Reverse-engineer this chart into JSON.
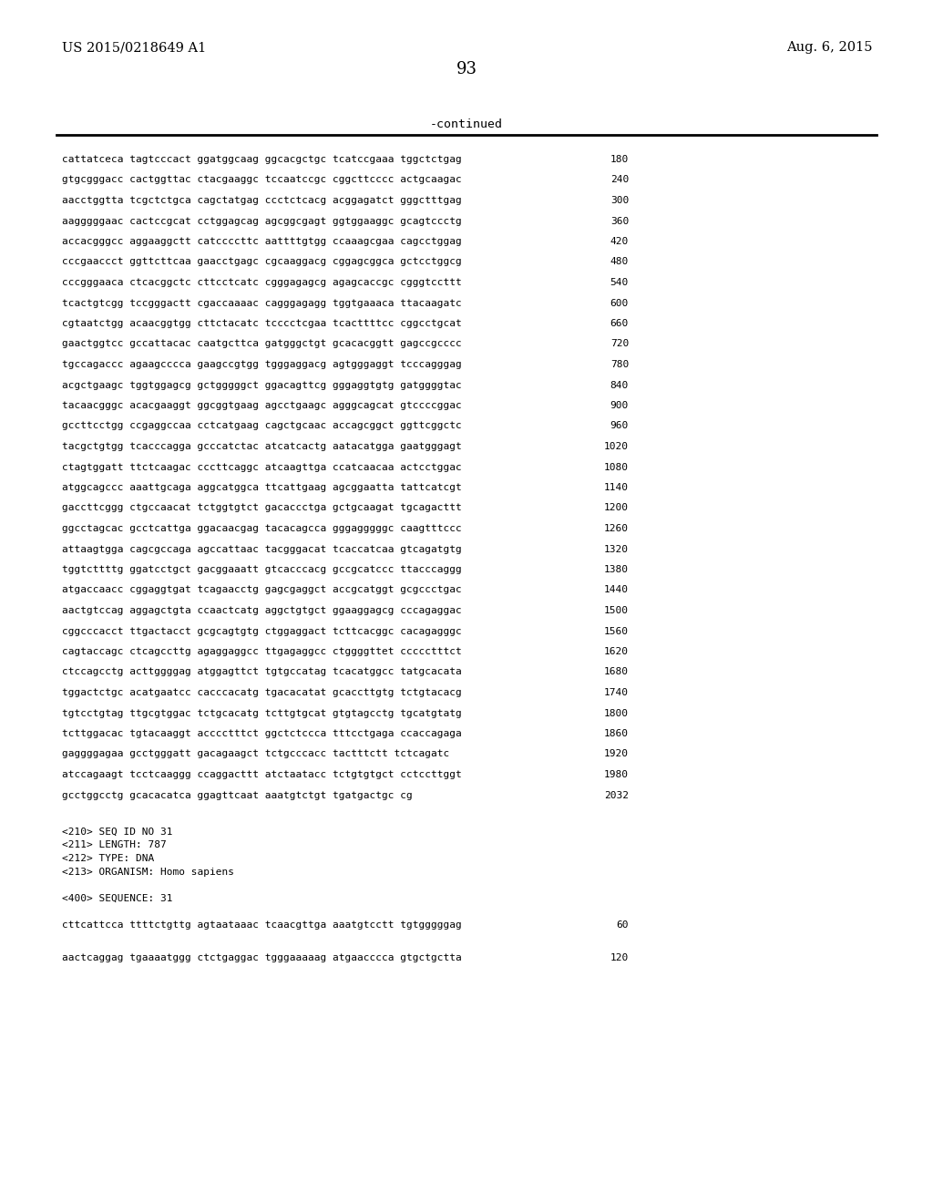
{
  "header_left": "US 2015/0218649 A1",
  "header_right": "Aug. 6, 2015",
  "page_number": "93",
  "continued_label": "-continued",
  "background_color": "#ffffff",
  "text_color": "#000000",
  "sequence_lines": [
    [
      "cattatceca tagtcccact ggatggcaag ggcacgctgc tcatccgaaa tggctctgag",
      "180"
    ],
    [
      "gtgcgggacc cactggttac ctacgaaggc tccaatccgc cggcttcccc actgcaagac",
      "240"
    ],
    [
      "aacctggtta tcgctctgca cagctatgag ccctctcacg acggagatct gggctttgag",
      "300"
    ],
    [
      "aagggggaac cactccgcat cctggagcag agcggcgagt ggtggaaggc gcagtccctg",
      "360"
    ],
    [
      "accacgggcc aggaaggctt catccccttc aattttgtgg ccaaagcgaa cagcctggag",
      "420"
    ],
    [
      "cccgaaccct ggttcttcaa gaacctgagc cgcaaggacg cggagcggca gctcctggcg",
      "480"
    ],
    [
      "cccgggaaca ctcacggctc cttcctcatc cgggagagcg agagcaccgc cgggtccttt",
      "540"
    ],
    [
      "tcactgtcgg tccgggactt cgaccaaaac cagggagagg tggtgaaaca ttacaagatc",
      "600"
    ],
    [
      "cgtaatctgg acaacggtgg cttctacatc tcccctcgaa tcacttttcc cggcctgcat",
      "660"
    ],
    [
      "gaactggtcc gccattacac caatgcttca gatgggctgt gcacacggtt gagccgcccc",
      "720"
    ],
    [
      "tgccagaccc agaagcccca gaagccgtgg tgggaggacg agtgggaggt tcccagggag",
      "780"
    ],
    [
      "acgctgaagc tggtggagcg gctgggggct ggacagttcg gggaggtgtg gatggggtac",
      "840"
    ],
    [
      "tacaacgggc acacgaaggt ggcggtgaag agcctgaagc agggcagcat gtccccggac",
      "900"
    ],
    [
      "gccttcctgg ccgaggccaa cctcatgaag cagctgcaac accagcggct ggttcggctc",
      "960"
    ],
    [
      "tacgctgtgg tcacccagga gcccatctac atcatcactg aatacatgga gaatgggagt",
      "1020"
    ],
    [
      "ctagtggatt ttctcaagac cccttcaggc atcaagttga ccatcaacaa actcctggac",
      "1080"
    ],
    [
      "atggcagccc aaattgcaga aggcatggca ttcattgaag agcggaatta tattcatcgt",
      "1140"
    ],
    [
      "gaccttcggg ctgccaacat tctggtgtct gacaccctga gctgcaagat tgcagacttt",
      "1200"
    ],
    [
      "ggcctagcac gcctcattga ggacaacgag tacacagcca gggagggggc caagtttccc",
      "1260"
    ],
    [
      "attaagtgga cagcgccaga agccattaac tacgggacat tcaccatcaa gtcagatgtg",
      "1320"
    ],
    [
      "tggtcttttg ggatcctgct gacggaaatt gtcacccacg gccgcatccc ttacccaggg",
      "1380"
    ],
    [
      "atgaccaacc cggaggtgat tcagaacctg gagcgaggct accgcatggt gcgccctgac",
      "1440"
    ],
    [
      "aactgtccag aggagctgta ccaactcatg aggctgtgct ggaaggagcg cccagaggac",
      "1500"
    ],
    [
      "cggcccacct ttgactacct gcgcagtgtg ctggaggact tcttcacggc cacagagggc",
      "1560"
    ],
    [
      "cagtaccagc ctcagccttg agaggaggcc ttgagaggcc ctggggttet ccccctttct",
      "1620"
    ],
    [
      "ctccagcctg acttggggag atggagttct tgtgccatag tcacatggcc tatgcacata",
      "1680"
    ],
    [
      "tggactctgc acatgaatcc cacccacatg tgacacatat gcaccttgtg tctgtacacg",
      "1740"
    ],
    [
      "tgtcctgtag ttgcgtggac tctgcacatg tcttgtgcat gtgtagcctg tgcatgtatg",
      "1800"
    ],
    [
      "tcttggacac tgtacaaggt acccctttct ggctctccca tttcctgaga ccaccagaga",
      "1860"
    ],
    [
      "gaggggagaa gcctgggatt gacagaagct tctgcccacc tactttctt tctcagatc",
      "1920"
    ],
    [
      "atccagaagt tcctcaaggg ccaggacttt atctaatacc tctgtgtgct cctccttggt",
      "1980"
    ],
    [
      "gcctggcctg gcacacatca ggagttcaat aaatgtctgt tgatgactgc cg",
      "2032"
    ]
  ],
  "meta_block": [
    {
      "text": "<210> SEQ ID NO 31",
      "indent": false,
      "blank_before": false
    },
    {
      "text": "<211> LENGTH: 787",
      "indent": false,
      "blank_before": false
    },
    {
      "text": "<212> TYPE: DNA",
      "indent": false,
      "blank_before": false
    },
    {
      "text": "<213> ORGANISM: Homo sapiens",
      "indent": false,
      "blank_before": false
    },
    {
      "text": "<400> SEQUENCE: 31",
      "indent": false,
      "blank_before": true
    },
    {
      "text": "cttcattcca ttttctgttg agtaataaac tcaacgttga aaatgtcctt tgtgggggag",
      "num": "60",
      "indent": false,
      "blank_before": true
    },
    {
      "text": "aactcaggag tgaaaatggg ctctgaggac tgggaaaaag atgaacccca gtgctgctta",
      "num": "120",
      "indent": false,
      "blank_before": true
    }
  ]
}
